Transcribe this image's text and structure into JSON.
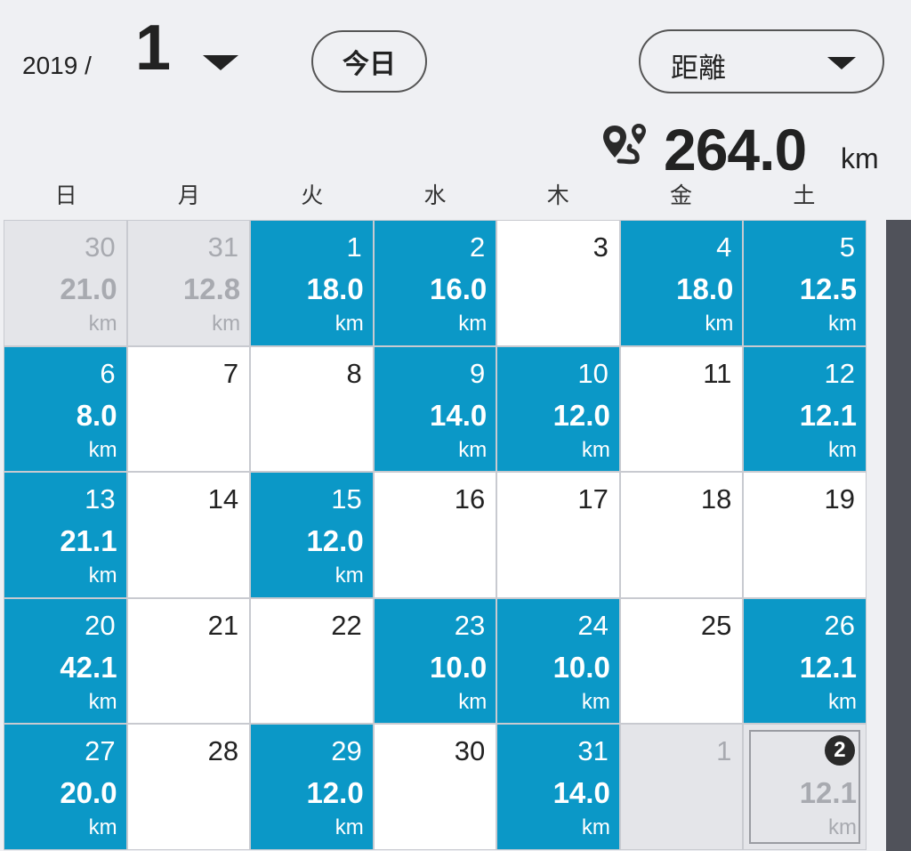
{
  "header": {
    "year": "2019 /",
    "month": "1",
    "today_label": "今日",
    "metric_label": "距離"
  },
  "summary": {
    "total_value": "264.0",
    "total_unit": "km",
    "icon": "route-icon"
  },
  "weekdays": [
    "日",
    "月",
    "火",
    "水",
    "木",
    "金",
    "土"
  ],
  "weeks": [
    [
      {
        "day": "30",
        "dist": "21.0",
        "unit": "km",
        "state": "other"
      },
      {
        "day": "31",
        "dist": "12.8",
        "unit": "km",
        "state": "other"
      },
      {
        "day": "1",
        "dist": "18.0",
        "unit": "km",
        "state": "active"
      },
      {
        "day": "2",
        "dist": "16.0",
        "unit": "km",
        "state": "active"
      },
      {
        "day": "3",
        "dist": "",
        "unit": "",
        "state": "empty"
      },
      {
        "day": "4",
        "dist": "18.0",
        "unit": "km",
        "state": "active"
      },
      {
        "day": "5",
        "dist": "12.5",
        "unit": "km",
        "state": "active"
      }
    ],
    [
      {
        "day": "6",
        "dist": "8.0",
        "unit": "km",
        "state": "active"
      },
      {
        "day": "7",
        "dist": "",
        "unit": "",
        "state": "empty"
      },
      {
        "day": "8",
        "dist": "",
        "unit": "",
        "state": "empty"
      },
      {
        "day": "9",
        "dist": "14.0",
        "unit": "km",
        "state": "active"
      },
      {
        "day": "10",
        "dist": "12.0",
        "unit": "km",
        "state": "active"
      },
      {
        "day": "11",
        "dist": "",
        "unit": "",
        "state": "empty"
      },
      {
        "day": "12",
        "dist": "12.1",
        "unit": "km",
        "state": "active"
      }
    ],
    [
      {
        "day": "13",
        "dist": "21.1",
        "unit": "km",
        "state": "active"
      },
      {
        "day": "14",
        "dist": "",
        "unit": "",
        "state": "empty"
      },
      {
        "day": "15",
        "dist": "12.0",
        "unit": "km",
        "state": "active"
      },
      {
        "day": "16",
        "dist": "",
        "unit": "",
        "state": "empty"
      },
      {
        "day": "17",
        "dist": "",
        "unit": "",
        "state": "empty"
      },
      {
        "day": "18",
        "dist": "",
        "unit": "",
        "state": "empty"
      },
      {
        "day": "19",
        "dist": "",
        "unit": "",
        "state": "empty"
      }
    ],
    [
      {
        "day": "20",
        "dist": "42.1",
        "unit": "km",
        "state": "active"
      },
      {
        "day": "21",
        "dist": "",
        "unit": "",
        "state": "empty"
      },
      {
        "day": "22",
        "dist": "",
        "unit": "",
        "state": "empty"
      },
      {
        "day": "23",
        "dist": "10.0",
        "unit": "km",
        "state": "active"
      },
      {
        "day": "24",
        "dist": "10.0",
        "unit": "km",
        "state": "active"
      },
      {
        "day": "25",
        "dist": "",
        "unit": "",
        "state": "empty"
      },
      {
        "day": "26",
        "dist": "12.1",
        "unit": "km",
        "state": "active"
      }
    ],
    [
      {
        "day": "27",
        "dist": "20.0",
        "unit": "km",
        "state": "active"
      },
      {
        "day": "28",
        "dist": "",
        "unit": "",
        "state": "empty"
      },
      {
        "day": "29",
        "dist": "12.0",
        "unit": "km",
        "state": "active"
      },
      {
        "day": "30",
        "dist": "",
        "unit": "",
        "state": "empty"
      },
      {
        "day": "31",
        "dist": "14.0",
        "unit": "km",
        "state": "active"
      },
      {
        "day": "1",
        "dist": "",
        "unit": "",
        "state": "other"
      },
      {
        "day": "2",
        "dist": "12.1",
        "unit": "km",
        "state": "other-selected"
      }
    ]
  ],
  "colors": {
    "active": "#0b98c7",
    "background": "#eff0f3",
    "other": "#e4e5e9"
  }
}
